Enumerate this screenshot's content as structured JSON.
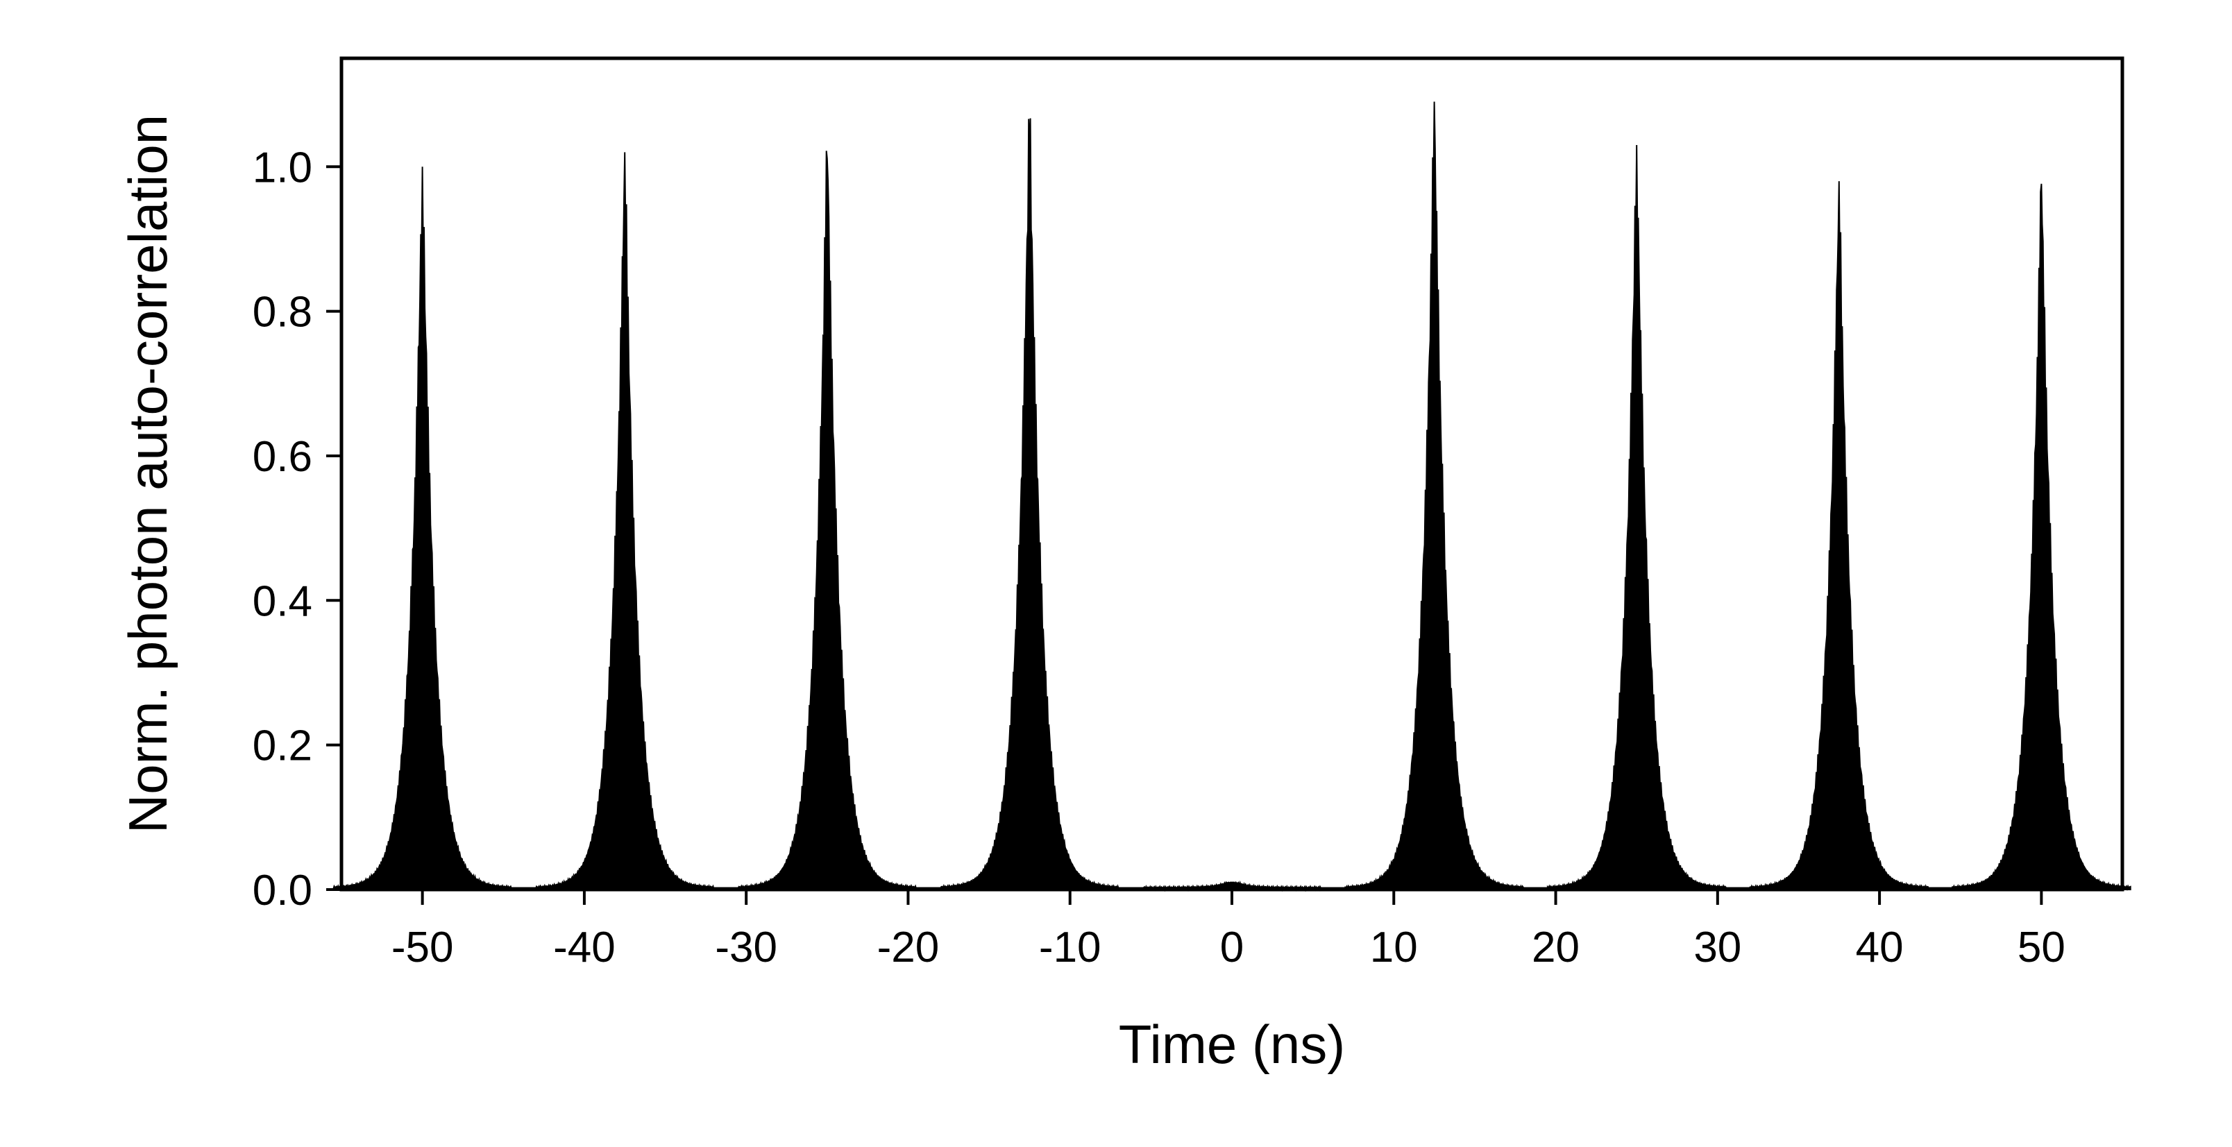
{
  "chart_data": {
    "type": "area",
    "title": "",
    "xlabel": "Time (ns)",
    "ylabel": "Norm. photon auto-correlation",
    "xlim": [
      -55,
      55
    ],
    "ylim": [
      0,
      1.15
    ],
    "x_ticks": [
      -50,
      -40,
      -30,
      -20,
      -10,
      0,
      10,
      20,
      30,
      40,
      50
    ],
    "x_tick_labels": [
      "-50",
      "-40",
      "-30",
      "-20",
      "-10",
      "0",
      "10",
      "20",
      "30",
      "40",
      "50"
    ],
    "y_ticks": [
      0.0,
      0.2,
      0.4,
      0.6,
      0.8,
      1.0
    ],
    "y_tick_labels": [
      "0.0",
      "0.2",
      "0.4",
      "0.6",
      "0.8",
      "1.0"
    ],
    "grid": false,
    "legend": "none",
    "series": [
      {
        "color": "#000000",
        "peaks": [
          {
            "center": -50.0,
            "height": 1.0
          },
          {
            "center": -37.5,
            "height": 1.02
          },
          {
            "center": -25.0,
            "height": 1.04
          },
          {
            "center": -12.5,
            "height": 1.08
          },
          {
            "center": 0.0,
            "height": 0.01
          },
          {
            "center": 12.5,
            "height": 1.09
          },
          {
            "center": 25.0,
            "height": 1.03
          },
          {
            "center": 37.5,
            "height": 0.98
          },
          {
            "center": 50.0,
            "height": 0.99
          }
        ]
      }
    ]
  }
}
